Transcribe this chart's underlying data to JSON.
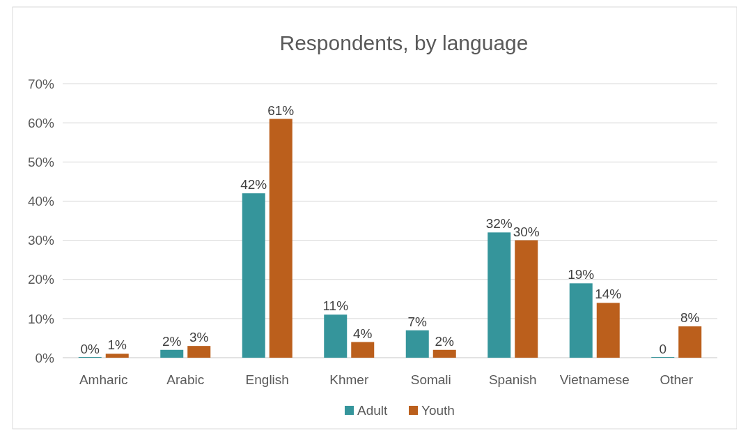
{
  "chart_data": {
    "type": "bar",
    "title": "Respondents, by language",
    "categories": [
      "Amharic",
      "Arabic",
      "English",
      "Khmer",
      "Somali",
      "Spanish",
      "Vietnamese",
      "Other"
    ],
    "series": [
      {
        "name": "Adult",
        "color": "#35959b",
        "values": [
          0,
          2,
          42,
          11,
          7,
          32,
          19,
          0
        ],
        "value_labels": [
          "0%",
          "2%",
          "42%",
          "11%",
          "7%",
          "32%",
          "19%",
          "0"
        ]
      },
      {
        "name": "Youth",
        "color": "#bb5f1c",
        "values": [
          1,
          3,
          61,
          4,
          2,
          30,
          14,
          8
        ],
        "value_labels": [
          "1%",
          "3%",
          "61%",
          "4%",
          "2%",
          "30%",
          "14%",
          "8%"
        ]
      }
    ],
    "ylim": [
      0,
      70
    ],
    "yticks": [
      {
        "value": 0,
        "label": "0%"
      },
      {
        "value": 10,
        "label": "10%"
      },
      {
        "value": 20,
        "label": "20%"
      },
      {
        "value": 30,
        "label": "30%"
      },
      {
        "value": 40,
        "label": "40%"
      },
      {
        "value": 50,
        "label": "50%"
      },
      {
        "value": 60,
        "label": "60%"
      },
      {
        "value": 70,
        "label": "70%"
      }
    ],
    "grid": "y",
    "legend": "bottom"
  }
}
